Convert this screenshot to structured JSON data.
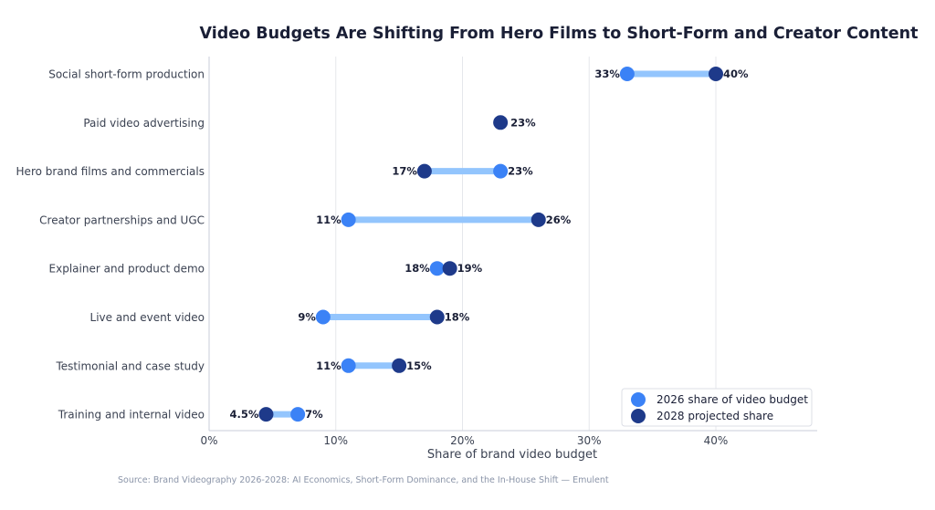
{
  "chart_data": {
    "type": "dumbbell",
    "title": "Video Budgets Are Shifting From Hero Films to Short-Form and Creator Content",
    "xlabel": "Share of brand video budget",
    "ylabel": "",
    "xlim": [
      0,
      48
    ],
    "x_ticks": [
      0,
      10,
      20,
      30,
      40
    ],
    "x_tick_labels": [
      "0%",
      "10%",
      "20%",
      "30%",
      "40%"
    ],
    "grid": "vertical",
    "categories": [
      "Social short-form production",
      "Paid video advertising",
      "Hero brand films and commercials",
      "Creator partnerships and UGC",
      "Explainer and product demo",
      "Live and event video",
      "Testimonial and case study",
      "Training and internal video"
    ],
    "series": [
      {
        "name": "2026 share of video budget",
        "color": "#3b82f6",
        "values": [
          33,
          23,
          23,
          11,
          18,
          9,
          11,
          7
        ],
        "labels": [
          "33%",
          "",
          "23%",
          "11%",
          "18%",
          "9%",
          "11%",
          "7%"
        ]
      },
      {
        "name": "2028 projected share",
        "color": "#1e3a8a",
        "values": [
          40,
          23,
          17,
          26,
          19,
          18,
          15,
          4.5
        ],
        "labels": [
          "40%",
          "23%",
          "17%",
          "26%",
          "19%",
          "18%",
          "15%",
          "4.5%"
        ]
      }
    ],
    "connector_color": "#93c5fd",
    "legend_position": "bottom-right",
    "source": "Source: Brand Videography 2026-2028: AI Economics, Short-Form Dominance, and the In-House Shift — Emulent"
  }
}
